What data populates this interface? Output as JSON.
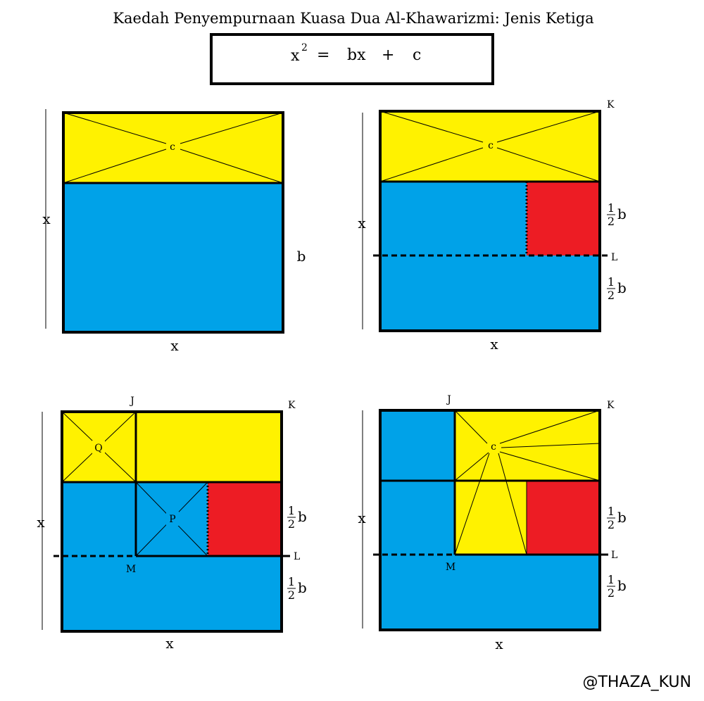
{
  "title": "Kaedah Penyempurnaan Kuasa Dua Al-Khawarizmi: Jenis Ketiga",
  "equation": {
    "lhs": "x",
    "exponent": "2",
    "equals": "=",
    "term1": "bx",
    "plus": "+",
    "term2": "c"
  },
  "labels": {
    "x": "x",
    "b": "b",
    "c": "c",
    "half_num": "1",
    "half_den": "2",
    "K": "K",
    "L": "L",
    "J": "J",
    "M": "M",
    "P": "P",
    "Q": "Q"
  },
  "watermark": "@THAZA_KUN",
  "colors": {
    "yellow": "#fff200",
    "blue": "#00a2e8",
    "red": "#ed1c24",
    "outline": "#000000"
  }
}
